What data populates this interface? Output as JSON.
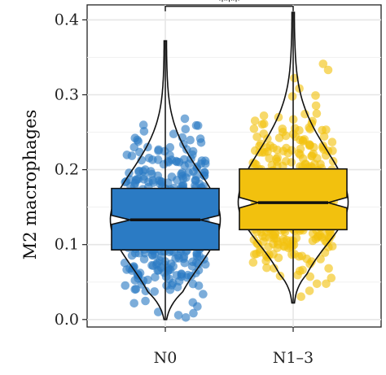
{
  "chart_data": {
    "type": "boxplot",
    "ylabel": "M2 macrophages",
    "xlabel": "",
    "categories": [
      "N0",
      "N1–3"
    ],
    "ylim": [
      -0.01,
      0.42
    ],
    "yticks": [
      0.0,
      0.1,
      0.2,
      0.3,
      0.4
    ],
    "ytick_labels": [
      "0.0",
      "0.1",
      "0.2",
      "0.3",
      "0.4"
    ],
    "grid": true,
    "legend": "none",
    "groups": [
      {
        "name": "N0",
        "color": "#2b7bc4",
        "box": {
          "q1": 0.093,
          "median": 0.133,
          "q3": 0.175
        },
        "notch": [
          0.127,
          0.139
        ],
        "range": [
          0.0,
          0.372
        ]
      },
      {
        "name": "N1–3",
        "color": "#f2c10e",
        "box": {
          "q1": 0.12,
          "median": 0.156,
          "q3": 0.201
        },
        "notch": [
          0.149,
          0.163
        ],
        "range": [
          0.022,
          0.41
        ]
      }
    ],
    "significance": {
      "label": "***",
      "between": [
        "N0",
        "N1–3"
      ],
      "y": 0.418
    }
  }
}
